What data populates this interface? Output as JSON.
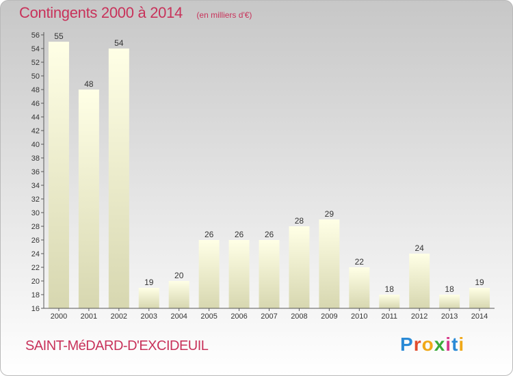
{
  "header": {
    "title": "Contingents 2000 à 2014",
    "unit": "(en milliers d'€)"
  },
  "footer": {
    "commune": "SAINT-MéDARD-D'EXCIDEUIL",
    "brand": "Proxiti",
    "brand_letter_colors": [
      "#2a8ad6",
      "#e04b2c",
      "#f0a818",
      "#3aaa3a",
      "#d63a8a",
      "#2a8ad6",
      "#f0a818"
    ]
  },
  "colors": {
    "title": "#c8325a",
    "bar_top": "#ffffe6",
    "bar_bottom": "#d7d7b0",
    "axis": "#555555"
  },
  "chart_data": {
    "type": "bar",
    "categories": [
      "2000",
      "2001",
      "2002",
      "2003",
      "2004",
      "2005",
      "2006",
      "2007",
      "2008",
      "2009",
      "2010",
      "2011",
      "2012",
      "2013",
      "2014"
    ],
    "values": [
      55,
      48,
      54,
      19,
      20,
      26,
      26,
      26,
      28,
      29,
      22,
      18,
      24,
      18,
      19
    ],
    "ylim": [
      16,
      56
    ],
    "ytick_step": 2,
    "grid": false,
    "data_labels": true
  }
}
